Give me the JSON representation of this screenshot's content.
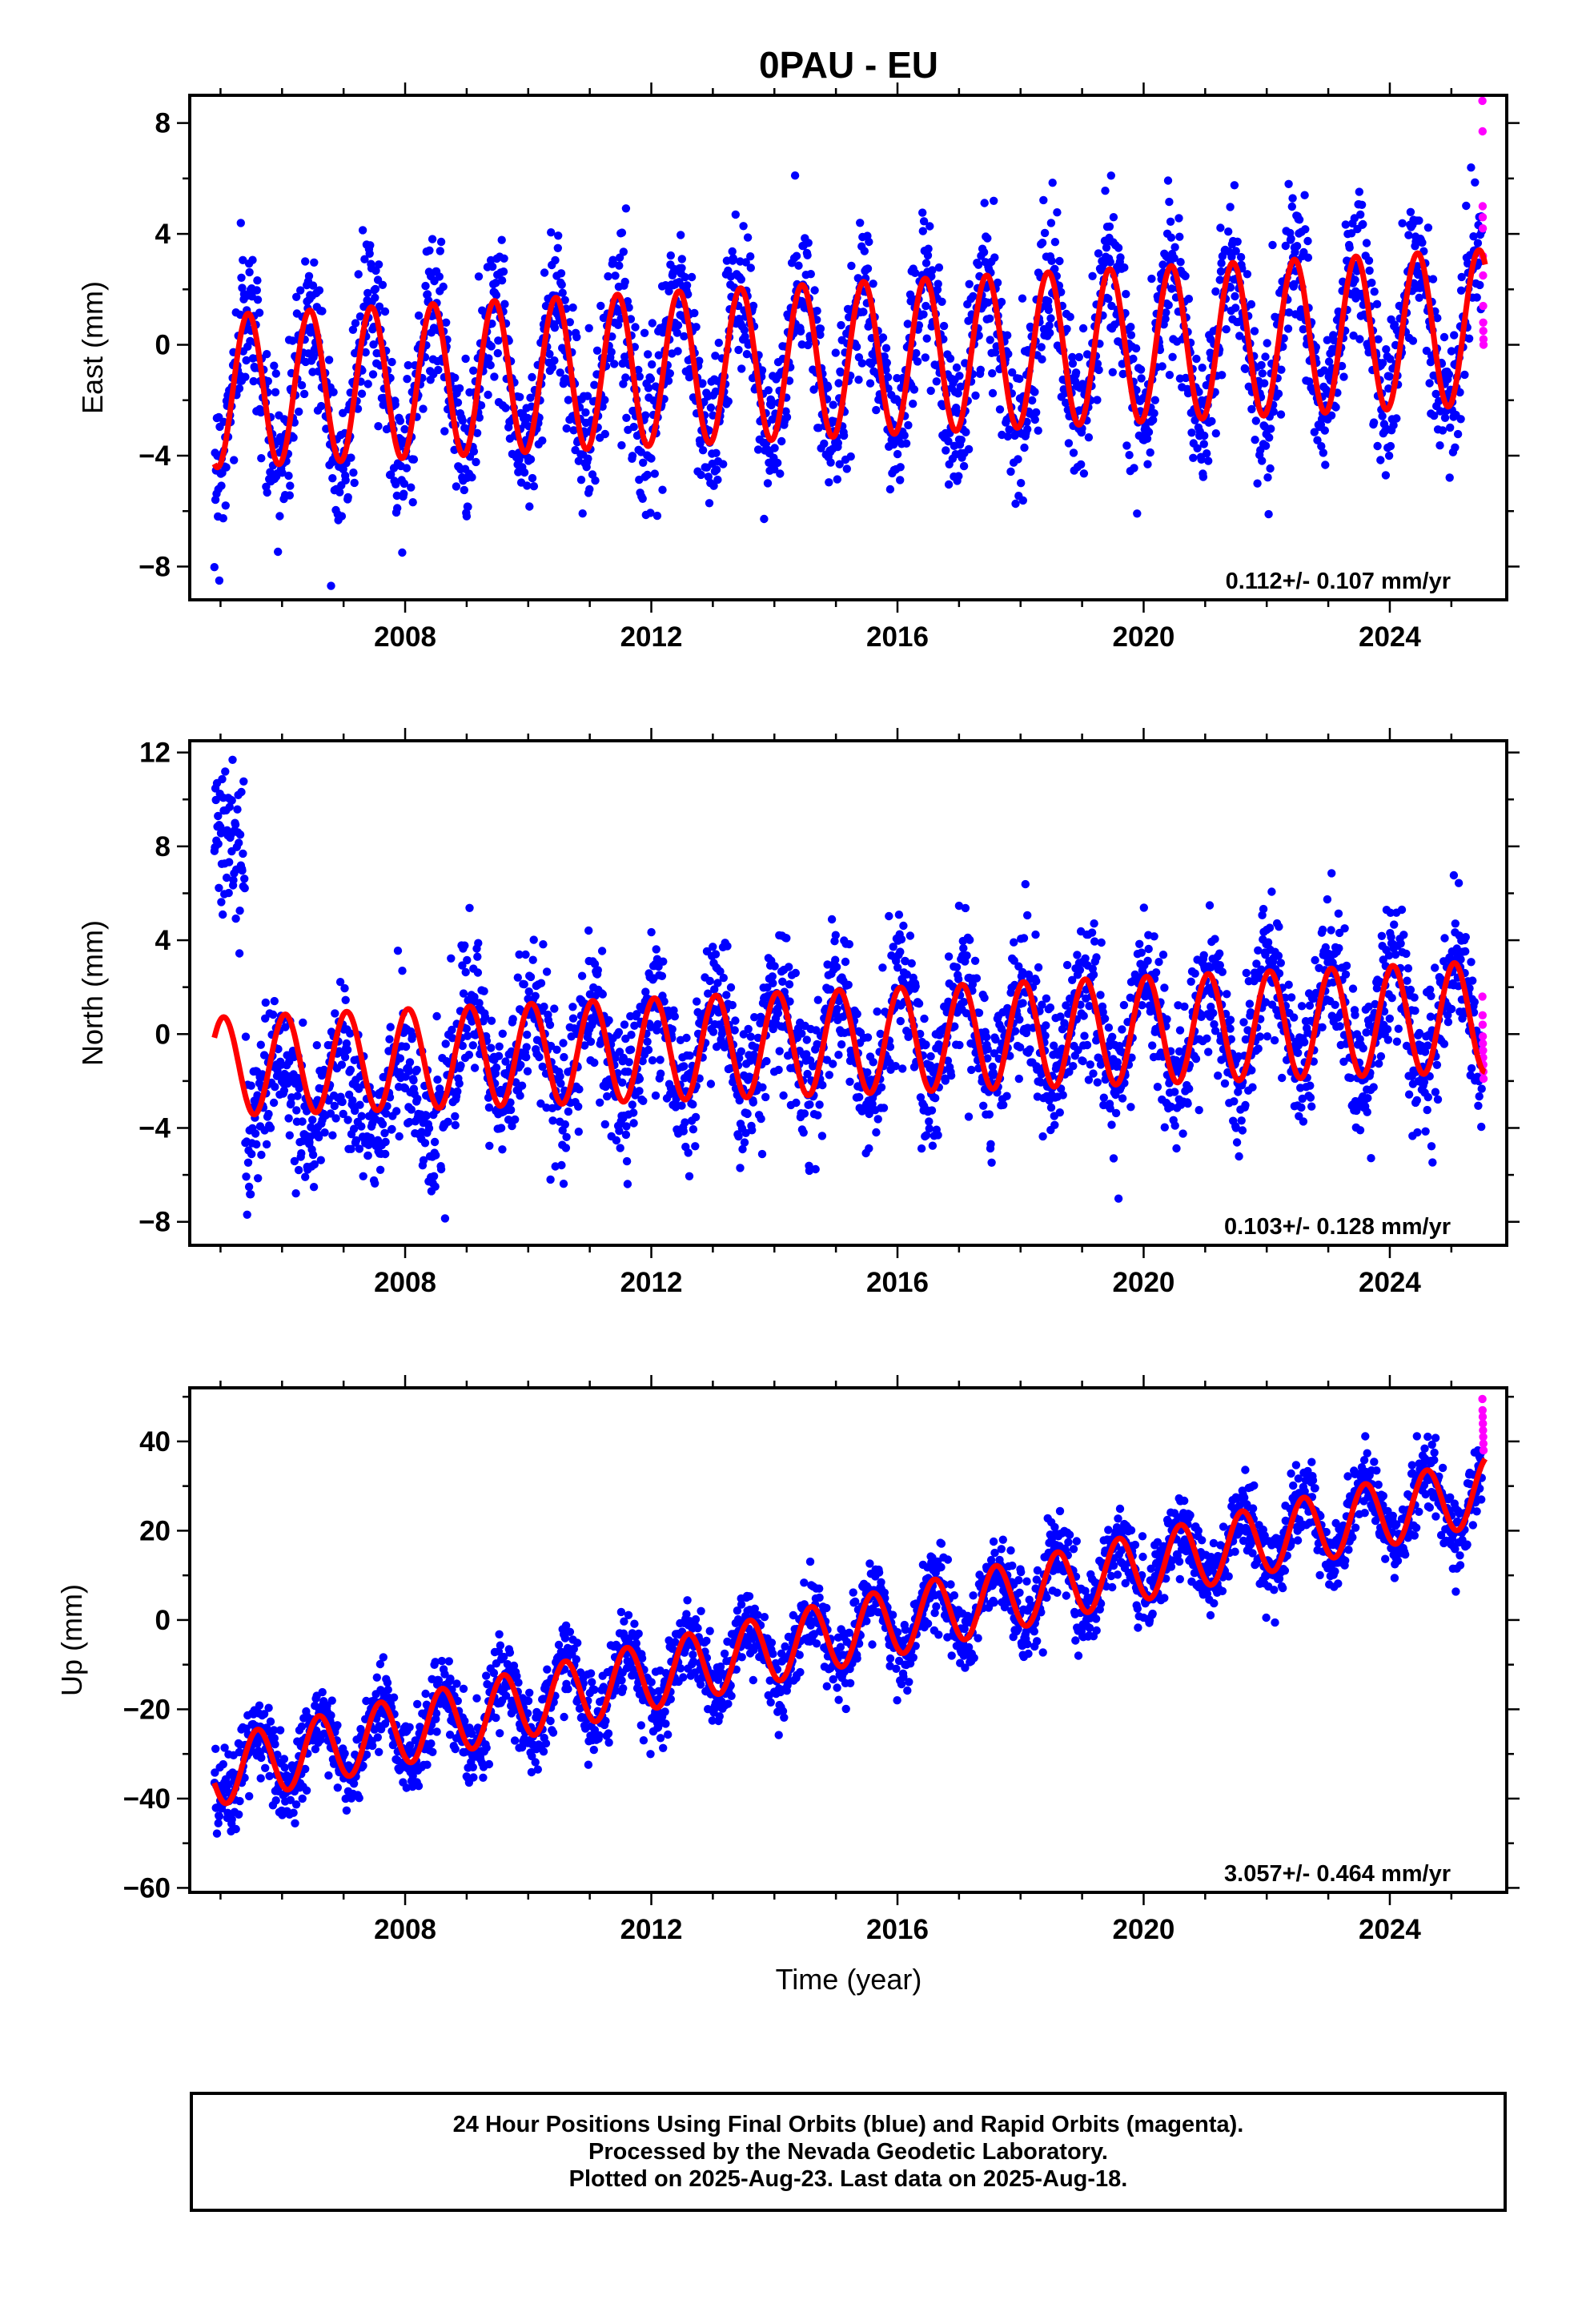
{
  "title": "0PAU - EU",
  "xlabel": "Time (year)",
  "x_ticks": [
    2008,
    2012,
    2016,
    2020,
    2024
  ],
  "colors": {
    "final": "#0000ff",
    "rapid": "#ff00ff",
    "model": "#ff0000",
    "frame": "#000000"
  },
  "footer": {
    "line1": "24 Hour Positions Using Final Orbits (blue) and Rapid Orbits (magenta).",
    "line2": "Processed by the Nevada Geodetic Laboratory.",
    "line3": "Plotted on 2025-Aug-23. Last data on 2025-Aug-18."
  },
  "chart_data": [
    {
      "type": "scatter",
      "component": "east",
      "ylabel": "East (mm)",
      "xlim": [
        2004.5,
        2025.9
      ],
      "ylim": [
        -9.2,
        9.0
      ],
      "y_ticks": [
        -8,
        -4,
        0,
        4,
        8
      ],
      "rate_label": "0.112+/- 0.107 mm/yr",
      "data_start": 2004.9,
      "data_end": 2025.55,
      "rapid_start": 2025.5,
      "model": {
        "offset": -0.55,
        "trend_mm_per_yr": 0.112,
        "annual_amplitude_start": 2.75,
        "annual_amplitude_end": 2.8,
        "peak_phase": 0.45,
        "ref_year": 2015.0
      },
      "scatter_sd": 1.35,
      "rapid_values": [
        8.8,
        7.7,
        5.0,
        4.6,
        4.2,
        3.2,
        2.5,
        1.4,
        0.8,
        0.5,
        0.2,
        0.0
      ]
    },
    {
      "type": "scatter",
      "component": "north",
      "ylabel": "North (mm)",
      "xlim": [
        2004.5,
        2025.9
      ],
      "ylim": [
        -9.0,
        12.5
      ],
      "y_ticks": [
        -8,
        -4,
        0,
        4,
        8,
        12
      ],
      "rate_label": "0.103+/- 0.128 mm/yr",
      "data_start": 2004.9,
      "data_end": 2025.55,
      "rapid_start": 2025.5,
      "model": {
        "offset": -0.35,
        "trend_mm_per_yr": 0.103,
        "annual_amplitude_start": 2.1,
        "annual_amplitude_end": 2.35,
        "peak_phase": 0.05,
        "ref_year": 2015.0
      },
      "scatter_sd": 1.5,
      "segments": [
        {
          "from": 2004.9,
          "to": 2005.4,
          "offset": 8.0
        },
        {
          "from": 2005.4,
          "to": 2008.9,
          "offset": -2.6
        }
      ],
      "rapid_values": [
        1.6,
        0.8,
        0.4,
        -0.1,
        -0.4,
        -0.7,
        -1.0,
        -1.3,
        -1.6,
        -1.9
      ]
    },
    {
      "type": "scatter",
      "component": "up",
      "ylabel": "Up (mm)",
      "xlim": [
        2004.5,
        2025.9
      ],
      "ylim": [
        -61.0,
        52.0
      ],
      "y_ticks": [
        -60,
        -40,
        -20,
        0,
        20,
        40
      ],
      "rate_label": "3.057+/- 0.464 mm/yr",
      "data_start": 2004.9,
      "data_end": 2025.55,
      "rapid_start": 2025.5,
      "model": {
        "offset": -3.3,
        "trend_mm_per_yr": 3.057,
        "annual_amplitude_start": 7.5,
        "annual_amplitude_end": 7.5,
        "peak_phase": 0.6,
        "ref_year": 2015.0
      },
      "scatter_sd": 4.2,
      "rapid_values": [
        49.5,
        47.0,
        45.5,
        44.0,
        42.5,
        41.0,
        39.5,
        38.0
      ]
    }
  ]
}
